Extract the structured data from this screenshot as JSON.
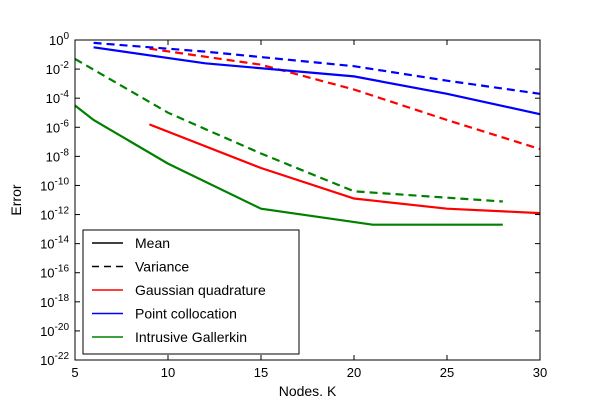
{
  "chart_data": {
    "type": "line",
    "title": "",
    "xlabel": "Nodes. K",
    "ylabel": "Error",
    "xlim": [
      5,
      30
    ],
    "ylim_exponent": [
      -22,
      0
    ],
    "yscale": "log",
    "grid": false,
    "legend_placement": "bottom-left",
    "x_ticks": [
      "5",
      "10",
      "15",
      "20",
      "25",
      "30"
    ],
    "y_ticks": [
      {
        "base": "10",
        "exp": "0",
        "value": 0
      },
      {
        "base": "10",
        "exp": "-2",
        "value": -2
      },
      {
        "base": "10",
        "exp": "-4",
        "value": -4
      },
      {
        "base": "10",
        "exp": "-6",
        "value": -6
      },
      {
        "base": "10",
        "exp": "-8",
        "value": -8
      },
      {
        "base": "10",
        "exp": "-10",
        "value": -10
      },
      {
        "base": "10",
        "exp": "-12",
        "value": -12
      },
      {
        "base": "10",
        "exp": "-14",
        "value": -14
      },
      {
        "base": "10",
        "exp": "-16",
        "value": -16
      },
      {
        "base": "10",
        "exp": "-18",
        "value": -18
      },
      {
        "base": "10",
        "exp": "-20",
        "value": -20
      },
      {
        "base": "10",
        "exp": "-22",
        "value": -22
      }
    ],
    "legend": [
      {
        "label": "Mean",
        "color": "#000000",
        "style": "solid"
      },
      {
        "label": "Variance",
        "color": "#000000",
        "style": "dashed"
      },
      {
        "label": "Gaussian quadrature",
        "color": "#ff0000",
        "style": "solid"
      },
      {
        "label": "Point collocation",
        "color": "#0000ff",
        "style": "solid"
      },
      {
        "label": "Intrusive Gallerkin",
        "color": "#008000",
        "style": "solid"
      }
    ],
    "series": [
      {
        "method": "Gaussian quadrature",
        "stat": "Mean",
        "color": "#ff0000",
        "style": "solid",
        "points": [
          [
            9,
            -5.8
          ],
          [
            15,
            -8.8
          ],
          [
            20,
            -10.9
          ],
          [
            25,
            -11.6
          ],
          [
            30,
            -11.9
          ]
        ]
      },
      {
        "method": "Gaussian quadrature",
        "stat": "Variance",
        "color": "#ff0000",
        "style": "dashed",
        "points": [
          [
            9,
            -0.6
          ],
          [
            15,
            -1.7
          ],
          [
            20,
            -3.4
          ],
          [
            25,
            -5.5
          ],
          [
            30,
            -7.5
          ]
        ]
      },
      {
        "method": "Point collocation",
        "stat": "Mean",
        "color": "#0000ff",
        "style": "solid",
        "points": [
          [
            6,
            -0.5
          ],
          [
            12,
            -1.6
          ],
          [
            20,
            -2.5
          ],
          [
            25,
            -3.7
          ],
          [
            30,
            -5.1
          ]
        ]
      },
      {
        "method": "Point collocation",
        "stat": "Variance",
        "color": "#0000ff",
        "style": "dashed",
        "points": [
          [
            6,
            -0.2
          ],
          [
            12,
            -0.8
          ],
          [
            20,
            -1.8
          ],
          [
            25,
            -2.8
          ],
          [
            30,
            -3.7
          ]
        ]
      },
      {
        "method": "Intrusive Gallerkin",
        "stat": "Mean",
        "color": "#008000",
        "style": "solid",
        "points": [
          [
            5,
            -4.5
          ],
          [
            6,
            -5.5
          ],
          [
            10,
            -8.5
          ],
          [
            15,
            -11.6
          ],
          [
            21,
            -12.7
          ],
          [
            28,
            -12.7
          ]
        ]
      },
      {
        "method": "Intrusive Gallerkin",
        "stat": "Variance",
        "color": "#008000",
        "style": "dashed",
        "points": [
          [
            5,
            -1.3
          ],
          [
            10,
            -5.0
          ],
          [
            15,
            -7.8
          ],
          [
            20,
            -10.4
          ],
          [
            28,
            -11.1
          ]
        ]
      }
    ]
  }
}
